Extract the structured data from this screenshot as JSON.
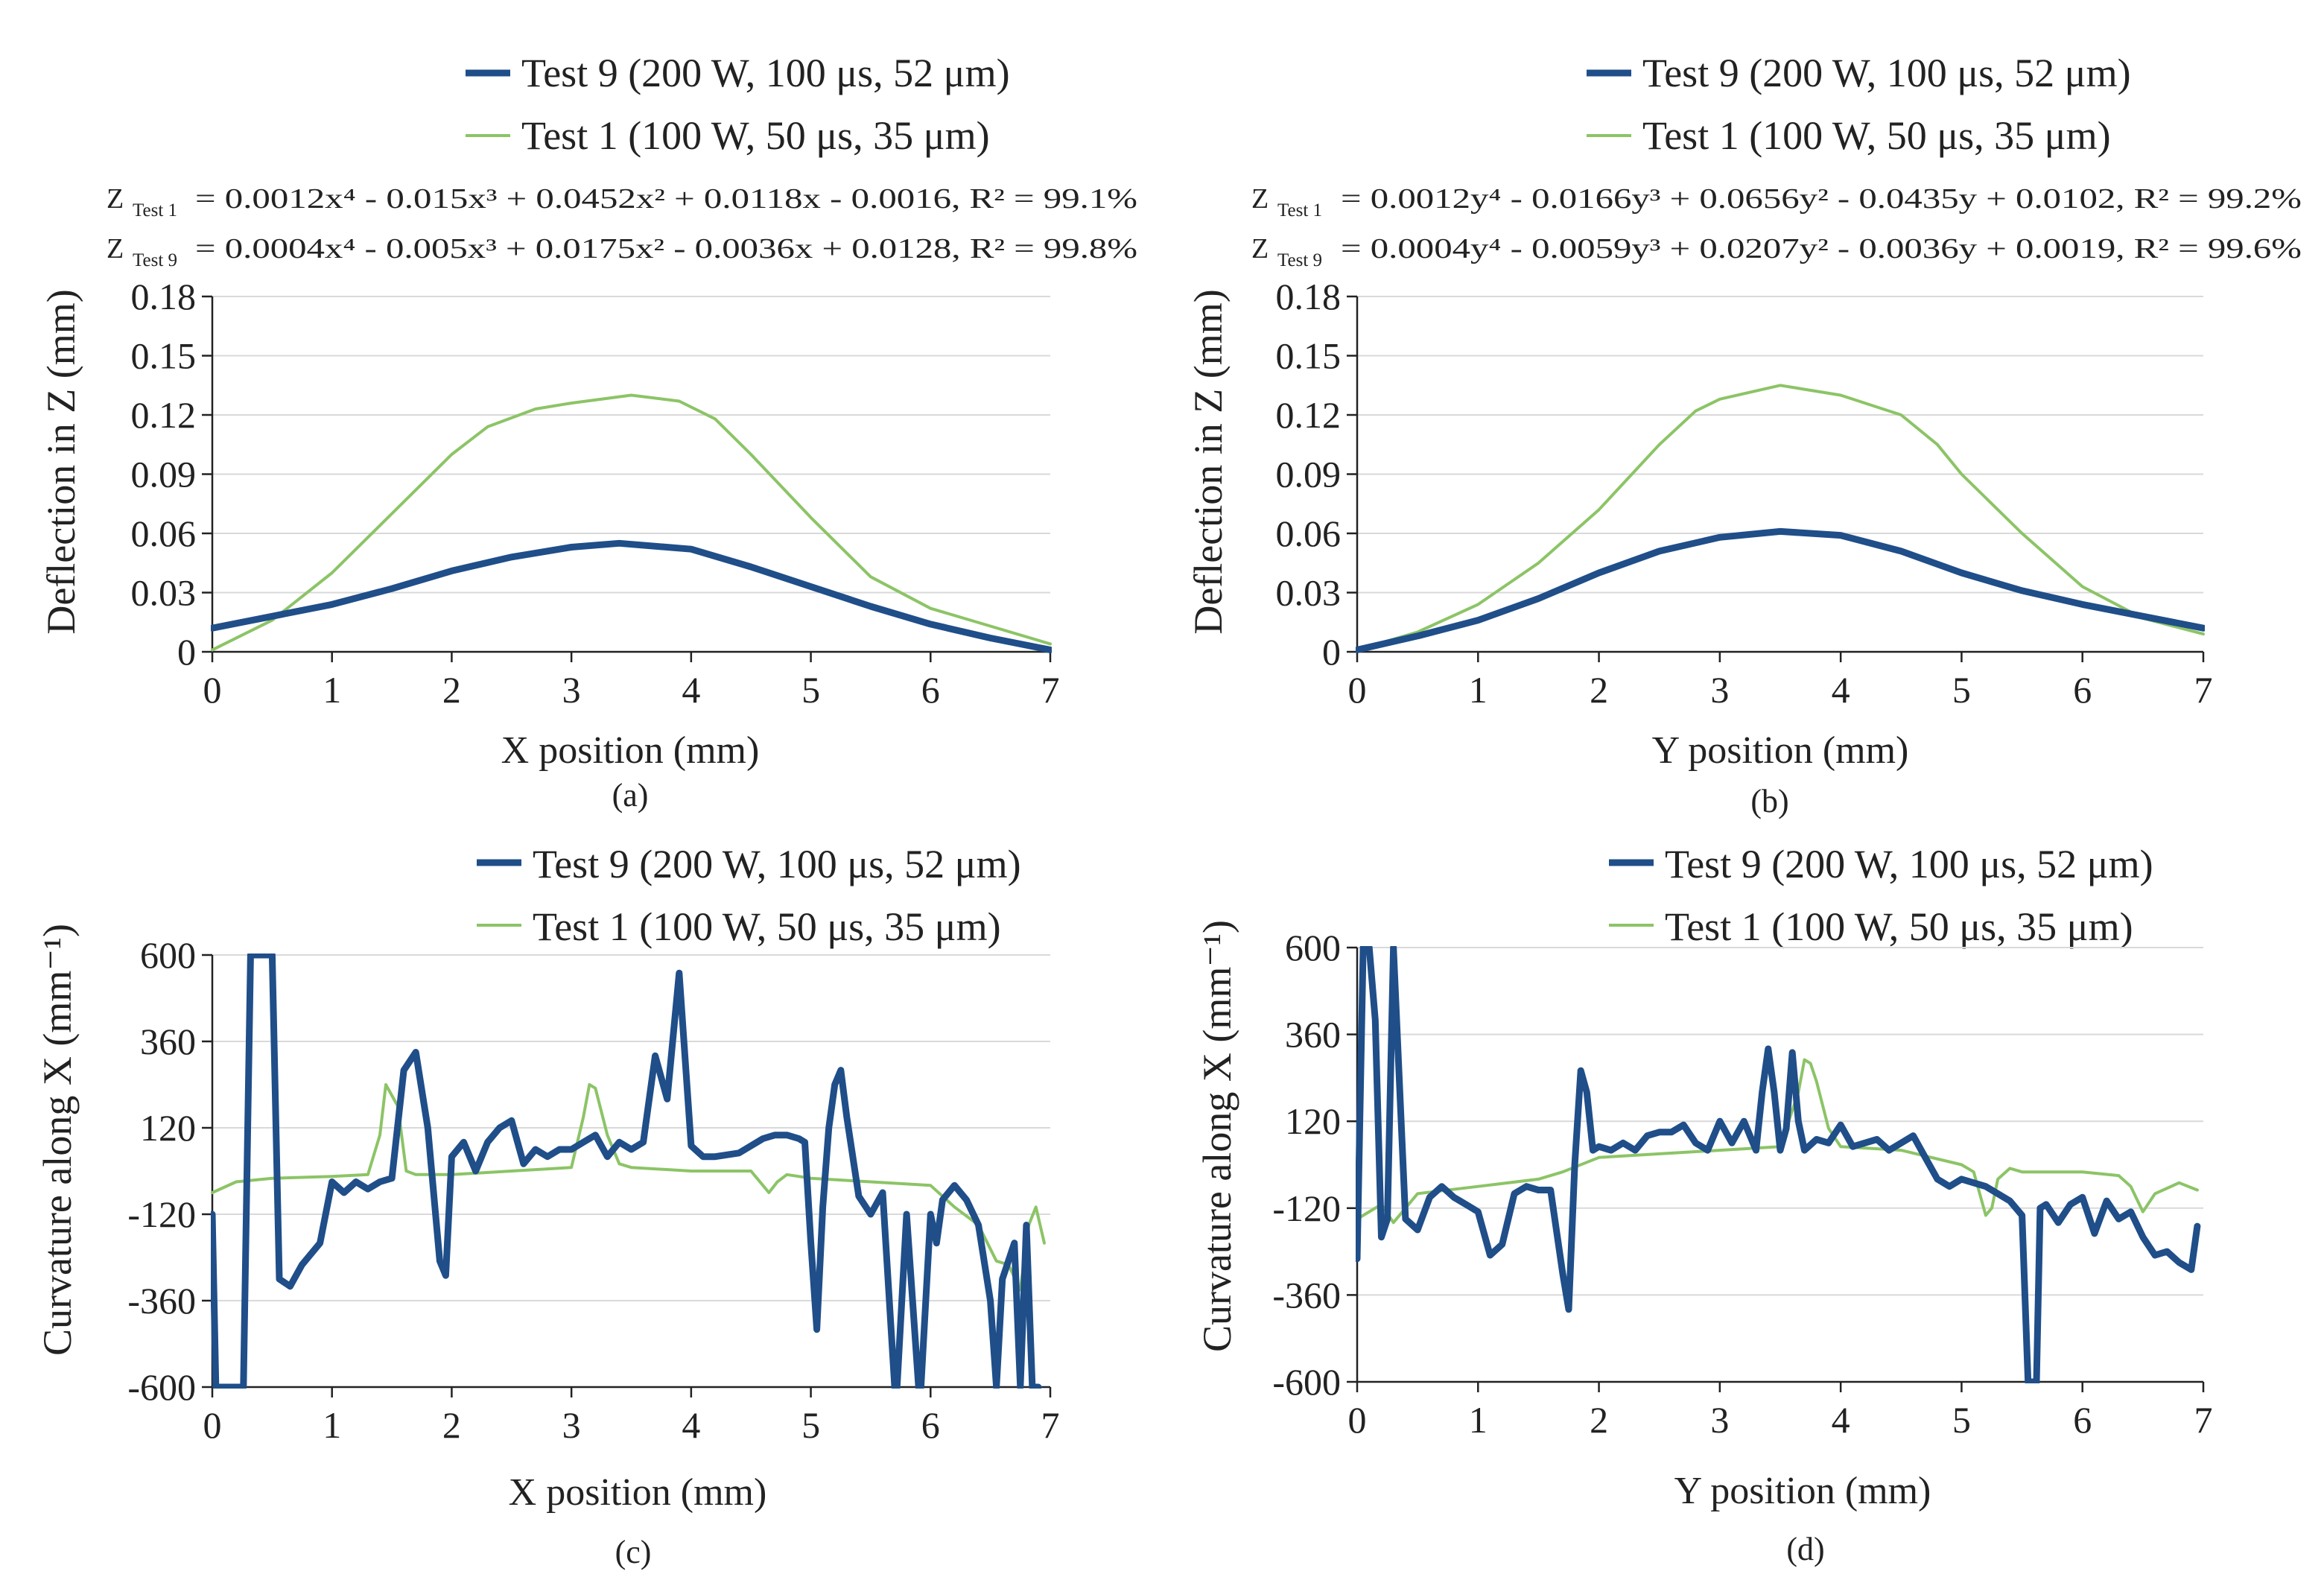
{
  "colors": {
    "test9": "#1f4e89",
    "test1": "#8cc466"
  },
  "chart_data": [
    {
      "panel": "a",
      "type": "line",
      "panel_label": "(a)",
      "xlabel": "X position (mm)",
      "ylabel": "Deflection in Z (mm)",
      "xlim": [
        0,
        7
      ],
      "ylim": [
        0,
        0.18
      ],
      "xticks": [
        "0",
        "1",
        "2",
        "3",
        "4",
        "5",
        "6",
        "7"
      ],
      "yticks": [
        "0",
        "0.03",
        "0.06",
        "0.09",
        "0.12",
        "0.15",
        "0.18"
      ],
      "legend": [
        "Test 9 (200 W, 100 μs, 52 μm)",
        "Test 1 (100 W,  50 μs, 35 μm)"
      ],
      "equations": [
        {
          "lhs": "Z",
          "sub": "Test 1",
          "rhs": "= 0.0012x⁴ - 0.015x³ + 0.0452x² + 0.0118x - 0.0016, R² = 99.1%"
        },
        {
          "lhs": "Z",
          "sub": "Test 9",
          "rhs": "= 0.0004x⁴ - 0.005x³ + 0.0175x² - 0.0036x + 0.0128, R² = 99.8%"
        }
      ],
      "series": [
        {
          "name": "Test 9 (200 W, 100 μs, 52 μm)",
          "color": "#1f4e89",
          "width": 9,
          "x": [
            0,
            0.5,
            1,
            1.5,
            2,
            2.5,
            3,
            3.4,
            4,
            4.5,
            5,
            5.5,
            6,
            6.5,
            7
          ],
          "y": [
            0.012,
            0.018,
            0.024,
            0.032,
            0.041,
            0.048,
            0.053,
            0.055,
            0.052,
            0.043,
            0.033,
            0.023,
            0.014,
            0.007,
            0.001
          ]
        },
        {
          "name": "Test 1 (100 W,  50 μs, 35 μm)",
          "color": "#8cc466",
          "width": 4,
          "x": [
            0,
            0.5,
            1,
            1.5,
            2,
            2.3,
            2.7,
            3,
            3.5,
            3.9,
            4.2,
            4.5,
            5,
            5.5,
            6,
            6.5,
            7
          ],
          "y": [
            0.001,
            0.016,
            0.04,
            0.07,
            0.1,
            0.114,
            0.123,
            0.126,
            0.13,
            0.127,
            0.118,
            0.1,
            0.068,
            0.038,
            0.022,
            0.013,
            0.004
          ]
        }
      ]
    },
    {
      "panel": "b",
      "type": "line",
      "panel_label": "(b)",
      "xlabel": "Y position (mm)",
      "ylabel": "Deflection in Z (mm)",
      "xlim": [
        0,
        7
      ],
      "ylim": [
        0,
        0.18
      ],
      "xticks": [
        "0",
        "1",
        "2",
        "3",
        "4",
        "5",
        "6",
        "7"
      ],
      "yticks": [
        "0",
        "0.03",
        "0.06",
        "0.09",
        "0.12",
        "0.15",
        "0.18"
      ],
      "legend": [
        "Test 9 (200 W, 100 μs, 52 μm)",
        "Test 1 (100 W, 50 μs, 35 μm)"
      ],
      "equations": [
        {
          "lhs": "Z",
          "sub": "Test 1",
          "rhs": "= 0.0012y⁴ - 0.0166y³ + 0.0656y² - 0.0435y + 0.0102, R² = 99.2%"
        },
        {
          "lhs": "Z",
          "sub": "Test 9",
          "rhs": "= 0.0004y⁴ - 0.0059y³ + 0.0207y² - 0.0036y + 0.0019, R² = 99.6%"
        }
      ],
      "series": [
        {
          "name": "Test 9 (200 W, 100 μs, 52 μm)",
          "color": "#1f4e89",
          "width": 9,
          "x": [
            0,
            0.5,
            1,
            1.5,
            2,
            2.5,
            3,
            3.5,
            4,
            4.5,
            5,
            5.5,
            6,
            6.5,
            7
          ],
          "y": [
            0.001,
            0.008,
            0.016,
            0.027,
            0.04,
            0.051,
            0.058,
            0.061,
            0.059,
            0.051,
            0.04,
            0.031,
            0.024,
            0.018,
            0.012
          ]
        },
        {
          "name": "Test 1 (100 W, 50 μs, 35 μm)",
          "color": "#8cc466",
          "width": 4,
          "x": [
            0,
            0.5,
            1,
            1.5,
            2,
            2.5,
            2.8,
            3,
            3.5,
            4,
            4.5,
            4.8,
            5,
            5.5,
            6,
            6.5,
            7
          ],
          "y": [
            0.001,
            0.01,
            0.024,
            0.045,
            0.072,
            0.105,
            0.122,
            0.128,
            0.135,
            0.13,
            0.12,
            0.105,
            0.09,
            0.06,
            0.033,
            0.017,
            0.009
          ]
        }
      ]
    },
    {
      "panel": "c",
      "type": "line",
      "panel_label": "(c)",
      "xlabel": "X position (mm)",
      "ylabel": "Curvature along X (mm⁻¹)",
      "xlim": [
        0,
        7
      ],
      "ylim": [
        -600,
        600
      ],
      "xticks": [
        "0",
        "1",
        "2",
        "3",
        "4",
        "5",
        "6",
        "7"
      ],
      "yticks": [
        "-600",
        "-360",
        "-120",
        "120",
        "360",
        "600"
      ],
      "legend": [
        "Test 9 (200 W, 100 μs, 52 μm)",
        "Test 1 (100 W, 50 μs, 35 μm)"
      ],
      "equations": [],
      "series": [
        {
          "name": "Test 9 (200 W, 100 μs, 52 μm)",
          "color": "#1f4e89",
          "width": 9,
          "x": [
            0,
            0.03,
            0.12,
            0.2,
            0.26,
            0.32,
            0.38,
            0.44,
            0.5,
            0.56,
            0.65,
            0.75,
            0.9,
            1,
            1.1,
            1.2,
            1.3,
            1.4,
            1.5,
            1.6,
            1.7,
            1.8,
            1.9,
            1.95,
            2,
            2.1,
            2.2,
            2.3,
            2.4,
            2.5,
            2.55,
            2.6,
            2.7,
            2.8,
            2.9,
            3,
            3.1,
            3.2,
            3.3,
            3.4,
            3.5,
            3.6,
            3.7,
            3.8,
            3.9,
            4,
            4.1,
            4.2,
            4.4,
            4.6,
            4.7,
            4.8,
            4.9,
            4.95,
            5.0,
            5.05,
            5.1,
            5.15,
            5.2,
            5.25,
            5.3,
            5.4,
            5.5,
            5.6,
            5.7,
            5.72,
            5.8,
            5.9,
            5.92,
            6.0,
            6.05,
            6.1,
            6.15,
            6.2,
            6.3,
            6.4,
            6.5,
            6.55,
            6.6,
            6.7,
            6.75,
            6.8,
            6.85,
            6.9
          ],
          "y": [
            -120,
            -600,
            -600,
            -600,
            -600,
            600,
            600,
            600,
            600,
            -300,
            -320,
            -260,
            -200,
            -30,
            -60,
            -30,
            -50,
            -30,
            -20,
            280,
            330,
            120,
            -250,
            -290,
            40,
            80,
            0,
            80,
            120,
            140,
            80,
            20,
            60,
            40,
            60,
            60,
            80,
            100,
            40,
            80,
            60,
            80,
            320,
            200,
            550,
            70,
            40,
            40,
            50,
            90,
            100,
            100,
            90,
            80,
            -200,
            -440,
            -100,
            120,
            240,
            280,
            150,
            -70,
            -120,
            -60,
            -600,
            -600,
            -120,
            -600,
            -600,
            -120,
            -200,
            -80,
            -60,
            -40,
            -80,
            -150,
            -360,
            -600,
            -300,
            -200,
            -600,
            -150,
            -600,
            -600
          ]
        },
        {
          "name": "Test 1 (100 W, 50 μs, 35 μm)",
          "color": "#8cc466",
          "width": 4,
          "x": [
            0,
            0.2,
            0.5,
            1,
            1.3,
            1.4,
            1.45,
            1.55,
            1.62,
            1.7,
            1.8,
            2,
            2.5,
            3,
            3.1,
            3.15,
            3.2,
            3.3,
            3.4,
            3.5,
            4,
            4.5,
            4.65,
            4.72,
            4.8,
            5,
            5.5,
            6,
            6.2,
            6.4,
            6.55,
            6.65,
            6.75,
            6.82,
            6.88,
            6.95
          ],
          "y": [
            -60,
            -30,
            -20,
            -15,
            -10,
            100,
            240,
            180,
            0,
            -10,
            -10,
            -10,
            0,
            10,
            150,
            240,
            230,
            100,
            20,
            10,
            0,
            0,
            -60,
            -30,
            -10,
            -20,
            -30,
            -40,
            -100,
            -150,
            -250,
            -260,
            -330,
            -150,
            -100,
            -200
          ]
        }
      ]
    },
    {
      "panel": "d",
      "type": "line",
      "panel_label": "(d)",
      "xlabel": "Y position (mm)",
      "ylabel": "Curvature along X (mm⁻¹)",
      "xlim": [
        0,
        7
      ],
      "ylim": [
        -600,
        600
      ],
      "xticks": [
        "0",
        "1",
        "2",
        "3",
        "4",
        "5",
        "6",
        "7"
      ],
      "yticks": [
        "-600",
        "-360",
        "-120",
        "120",
        "360",
        "600"
      ],
      "legend": [
        "Test 9 (200 W, 100 μs, 52 μm)",
        "Test 1 (100 W, 50 μs, 35 μm)"
      ],
      "equations": [],
      "series": [
        {
          "name": "Test 9 (200 W, 100 μs, 52 μm)",
          "color": "#1f4e89",
          "width": 9,
          "x": [
            0,
            0.05,
            0.1,
            0.15,
            0.2,
            0.25,
            0.3,
            0.4,
            0.5,
            0.6,
            0.7,
            0.8,
            0.9,
            1,
            1.1,
            1.2,
            1.3,
            1.4,
            1.5,
            1.6,
            1.7,
            1.75,
            1.8,
            1.85,
            1.9,
            1.95,
            2,
            2.1,
            2.2,
            2.3,
            2.4,
            2.5,
            2.6,
            2.7,
            2.8,
            2.9,
            3,
            3.1,
            3.2,
            3.3,
            3.35,
            3.4,
            3.45,
            3.5,
            3.55,
            3.6,
            3.65,
            3.7,
            3.8,
            3.9,
            4,
            4.1,
            4.2,
            4.3,
            4.4,
            4.6,
            4.7,
            4.8,
            4.9,
            5,
            5.2,
            5.4,
            5.5,
            5.55,
            5.6,
            5.62,
            5.65,
            5.7,
            5.8,
            5.9,
            6,
            6.1,
            6.2,
            6.3,
            6.4,
            6.5,
            6.6,
            6.7,
            6.8,
            6.9,
            6.95
          ],
          "y": [
            -260,
            600,
            600,
            400,
            -200,
            -150,
            600,
            -150,
            -180,
            -90,
            -60,
            -90,
            -110,
            -130,
            -250,
            -220,
            -80,
            -60,
            -70,
            -70,
            -300,
            -400,
            0,
            260,
            200,
            40,
            50,
            40,
            60,
            40,
            80,
            90,
            90,
            110,
            60,
            40,
            120,
            60,
            120,
            40,
            200,
            320,
            200,
            40,
            100,
            310,
            120,
            40,
            70,
            60,
            110,
            50,
            60,
            70,
            40,
            80,
            20,
            -40,
            -60,
            -40,
            -60,
            -100,
            -140,
            -600,
            -600,
            -600,
            -120,
            -110,
            -160,
            -110,
            -90,
            -190,
            -100,
            -150,
            -130,
            -200,
            -250,
            -240,
            -270,
            -290,
            -170
          ]
        },
        {
          "name": "Test 1 (100 W, 50 μs, 35 μm)",
          "color": "#8cc466",
          "width": 4,
          "x": [
            0,
            0.2,
            0.3,
            0.5,
            1,
            1.5,
            1.7,
            2,
            2.5,
            3,
            3.5,
            3.65,
            3.7,
            3.75,
            3.8,
            3.9,
            4,
            4.5,
            5,
            5.1,
            5.2,
            5.25,
            5.3,
            5.4,
            5.5,
            6,
            6.3,
            6.4,
            6.5,
            6.6,
            6.8,
            6.95
          ],
          "y": [
            -150,
            -110,
            -160,
            -80,
            -60,
            -40,
            -20,
            20,
            30,
            40,
            50,
            200,
            290,
            280,
            230,
            100,
            50,
            40,
            0,
            -20,
            -140,
            -120,
            -40,
            -10,
            -20,
            -20,
            -30,
            -60,
            -130,
            -80,
            -50,
            -70
          ]
        }
      ]
    }
  ]
}
